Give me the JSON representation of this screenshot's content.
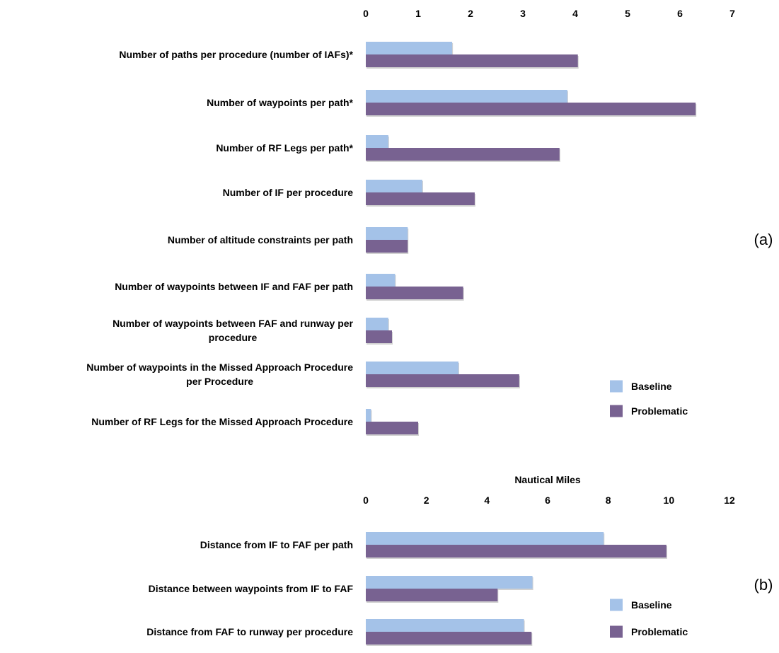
{
  "chart_data": [
    {
      "type": "bar",
      "orientation": "horizontal",
      "panel_label": "(a)",
      "xlabel": "",
      "xlim": [
        0,
        7
      ],
      "x_ticks": [
        0,
        1,
        2,
        3,
        4,
        5,
        6,
        7
      ],
      "axis_position": "top",
      "grid": false,
      "legend": "bottom-right",
      "categories": [
        [
          "Number of paths per procedure (number of IAFs)*"
        ],
        [
          "Number of waypoints per path*"
        ],
        [
          "Number of RF Legs per path*"
        ],
        [
          "Number of IF per procedure"
        ],
        [
          "Number of altitude constraints per path"
        ],
        [
          "Number of waypoints between IF and FAF per path"
        ],
        [
          "Number of waypoints between FAF and runway per",
          "procedure"
        ],
        [
          "Number of waypoints  in the Missed Approach Procedure",
          "per Procedure"
        ],
        [
          "Number of RF Legs for the Missed Approach Procedure"
        ]
      ],
      "series": [
        {
          "name": "Baseline",
          "color": "#a4c2e8",
          "values": [
            1.65,
            3.85,
            0.43,
            1.08,
            0.8,
            0.56,
            0.43,
            1.77,
            0.1
          ]
        },
        {
          "name": "Problematic",
          "color": "#786291",
          "values": [
            4.05,
            6.3,
            3.7,
            2.08,
            0.8,
            1.86,
            0.5,
            2.93,
            1.0
          ]
        }
      ]
    },
    {
      "type": "bar",
      "orientation": "horizontal",
      "panel_label": "(b)",
      "xlabel": "Nautical Miles",
      "xlim": [
        0,
        12
      ],
      "x_ticks": [
        0,
        2,
        4,
        6,
        8,
        10,
        12
      ],
      "axis_position": "top",
      "grid": false,
      "legend": "bottom-right",
      "categories": [
        [
          "Distance from IF to FAF per path"
        ],
        [
          "Distance between waypoints from IF to FAF"
        ],
        [
          "Distance from FAF to runway per procedure"
        ]
      ],
      "series": [
        {
          "name": "Baseline",
          "color": "#a4c2e8",
          "values": [
            7.85,
            5.5,
            5.22
          ]
        },
        {
          "name": "Problematic",
          "color": "#786291",
          "values": [
            9.92,
            4.35,
            5.47
          ]
        }
      ]
    }
  ]
}
